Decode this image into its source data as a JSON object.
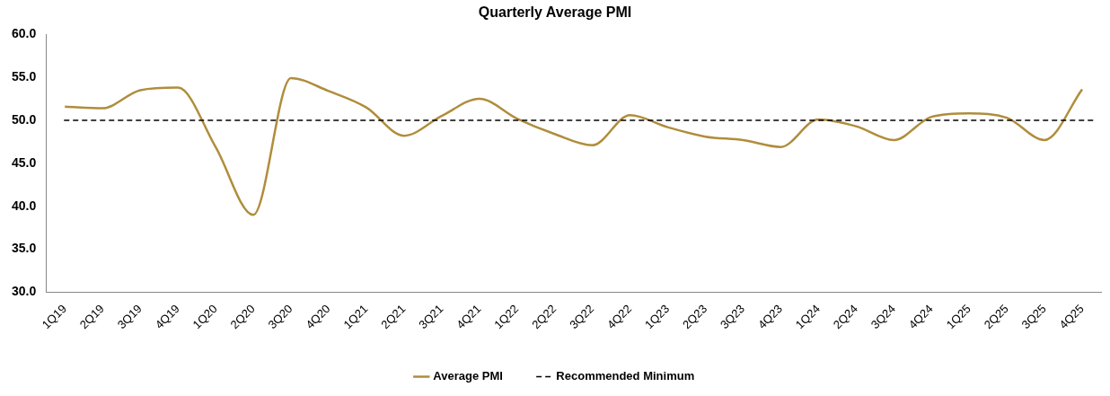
{
  "chart_data": {
    "type": "line",
    "title": "Quarterly Average PMI",
    "categories": [
      "1Q19",
      "2Q19",
      "3Q19",
      "4Q19",
      "1Q20",
      "2Q20",
      "3Q20",
      "4Q20",
      "1Q21",
      "2Q21",
      "3Q21",
      "4Q21",
      "1Q22",
      "2Q22",
      "3Q22",
      "4Q22",
      "1Q23",
      "2Q23",
      "3Q23",
      "4Q23",
      "1Q24",
      "2Q24",
      "3Q24",
      "4Q24",
      "1Q25",
      "2Q25",
      "3Q25",
      "4Q25"
    ],
    "series": [
      {
        "name": "Average PMI",
        "color": "#b08d3c",
        "values": [
          51.6,
          51.4,
          53.5,
          53.8,
          46.9,
          39.0,
          54.9,
          53.4,
          51.5,
          48.2,
          50.5,
          52.5,
          50.2,
          48.4,
          47.1,
          50.6,
          49.2,
          48.1,
          47.7,
          46.9,
          50.1,
          49.3,
          47.7,
          50.4,
          50.8,
          50.3,
          47.7,
          53.6
        ]
      }
    ],
    "ylim": [
      30,
      60
    ],
    "yticks": [
      {
        "value": 30,
        "label": "30.0"
      },
      {
        "value": 35,
        "label": "35.0"
      },
      {
        "value": 40,
        "label": "40.0"
      },
      {
        "value": 45,
        "label": "45.0"
      },
      {
        "value": 50,
        "label": "50.0"
      },
      {
        "value": 55,
        "label": "55.0"
      },
      {
        "value": 60,
        "label": "60.0"
      }
    ],
    "ref_lines": [
      {
        "axis": "y",
        "value": 50,
        "label": "Recommended Minimum",
        "color": "#000000",
        "line_style": "dashed"
      }
    ],
    "grid": false,
    "legend": "bottom",
    "marker": "none",
    "line_style": "solid"
  }
}
